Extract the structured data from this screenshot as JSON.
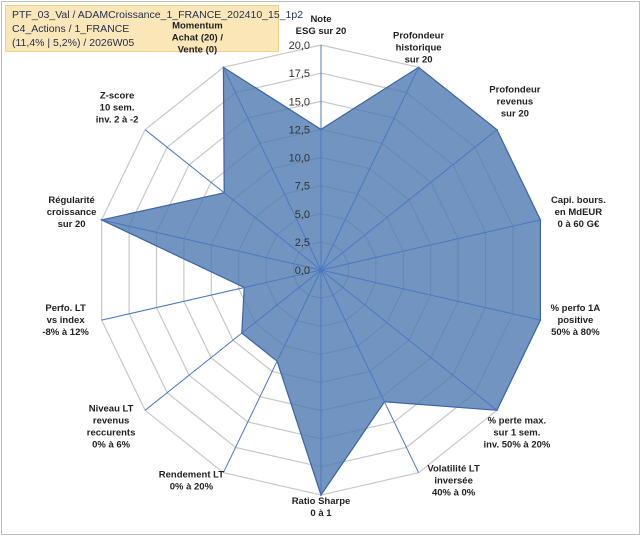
{
  "header": {
    "line1": "PTF_03_Val / ADAMCroissance_1_FRANCE_202410_15_1p2",
    "line2": "C4_Actions / 1_FRANCE",
    "line3": "(11,4% | 5,2%) / 2026W05"
  },
  "colors": {
    "fill": "#4f79b0",
    "stroke": "#3b64a8",
    "grid": "#c8c8c8",
    "spoke": "#4a78c4",
    "header_bg": "#fbe6b8",
    "momentum_text": "#b9a160"
  },
  "chart_data": {
    "type": "radar",
    "title": "",
    "r_range": [
      0,
      20
    ],
    "r_step": 2.5,
    "tick_labels": [
      "0,0",
      "2,5",
      "5,0",
      "7,5",
      "10,0",
      "12,5",
      "15,0",
      "17,5",
      "20,0"
    ],
    "axes": [
      {
        "lines": [
          "Note",
          "ESG sur 20"
        ],
        "value": 12.5
      },
      {
        "lines": [
          "Profondeur",
          "historique",
          "sur 20"
        ],
        "value": 20
      },
      {
        "lines": [
          "Profondeur",
          "revenus",
          "sur 20"
        ],
        "value": 20
      },
      {
        "lines": [
          "Capi. bours.",
          "en MdEUR",
          "0 à 60 G€"
        ],
        "value": 20
      },
      {
        "lines": [
          "% perfo 1A",
          "positive",
          "50% à 80%"
        ],
        "value": 20
      },
      {
        "lines": [
          "% perte max.",
          "sur 1 sem.",
          "inv. 50% à 20%"
        ],
        "value": 20
      },
      {
        "lines": [
          "Volatilité LT",
          "inversée",
          "40% à 0%"
        ],
        "value": 13
      },
      {
        "lines": [
          "Ratio Sharpe",
          "0 à 1"
        ],
        "value": 20
      },
      {
        "lines": [
          "Rendement LT",
          "0% à 20%"
        ],
        "value": 9
      },
      {
        "lines": [
          "Niveau LT",
          "revenus",
          "reccurents",
          "0% à 6%"
        ],
        "value": 9
      },
      {
        "lines": [
          "Perfo. LT",
          "vs index",
          "-8% à 12%"
        ],
        "value": 7
      },
      {
        "lines": [
          "Régularité",
          "croissance",
          "sur 20"
        ],
        "value": 20
      },
      {
        "lines": [
          "Z-score",
          "10 sem.",
          "inv. 2 à -2"
        ],
        "value": 11
      },
      {
        "lines": [
          "Momentum",
          "Achat (20) /",
          "Vente (0)"
        ],
        "value": 20
      }
    ]
  }
}
